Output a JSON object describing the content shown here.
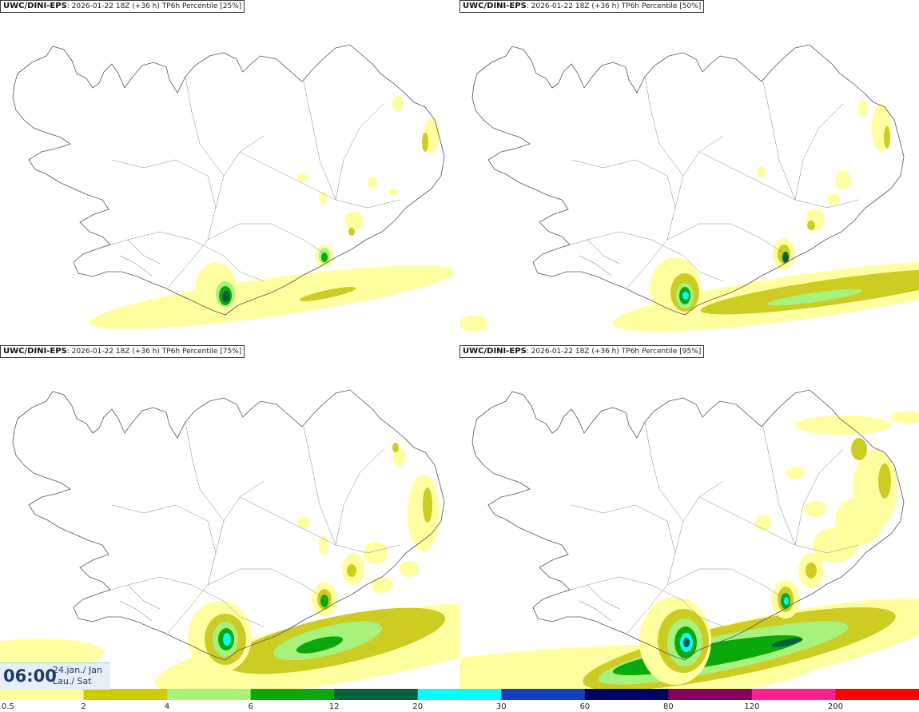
{
  "panels": [
    {
      "source": "UWC/DINI-EPS",
      "info": "2026-01-22 18Z (+36 h)",
      "label": "TP6h Percentile [25%]",
      "percentile": 25
    },
    {
      "source": "UWC/DINI-EPS",
      "info": "2026-01-22 18Z (+36 h)",
      "label": "TP6h Percentile [50%]",
      "percentile": 50
    },
    {
      "source": "UWC/DINI-EPS",
      "info": "2026-01-22 18Z (+36 h)",
      "label": "TP6h Percentile [75%]",
      "percentile": 75
    },
    {
      "source": "UWC/DINI-EPS",
      "info": "2026-01-22 18Z (+36 h)",
      "label": "TP6h Percentile [95%]",
      "percentile": 95
    }
  ],
  "valid_time": {
    "time": "06:00",
    "date_line1": "24.jan./ Jan",
    "date_line2": "Lau./ Sat"
  },
  "legend": {
    "ticks": [
      "0.5",
      "2",
      "4",
      "6",
      "12",
      "20",
      "30",
      "60",
      "80",
      "120",
      "200"
    ],
    "colors": [
      "#ffffa0",
      "#cccc00",
      "#a6f27a",
      "#0ba80b",
      "#06603c",
      "#00ffff",
      "#1040c0",
      "#000060",
      "#800060",
      "#ff2090",
      "#ff0000"
    ]
  },
  "colors": {
    "coast": "#555555",
    "level1": "#ffffa0",
    "level2": "#cccc22",
    "level3": "#a6f27a",
    "level4": "#0ba80b",
    "level5": "#06603c",
    "level6": "#00ffff"
  }
}
